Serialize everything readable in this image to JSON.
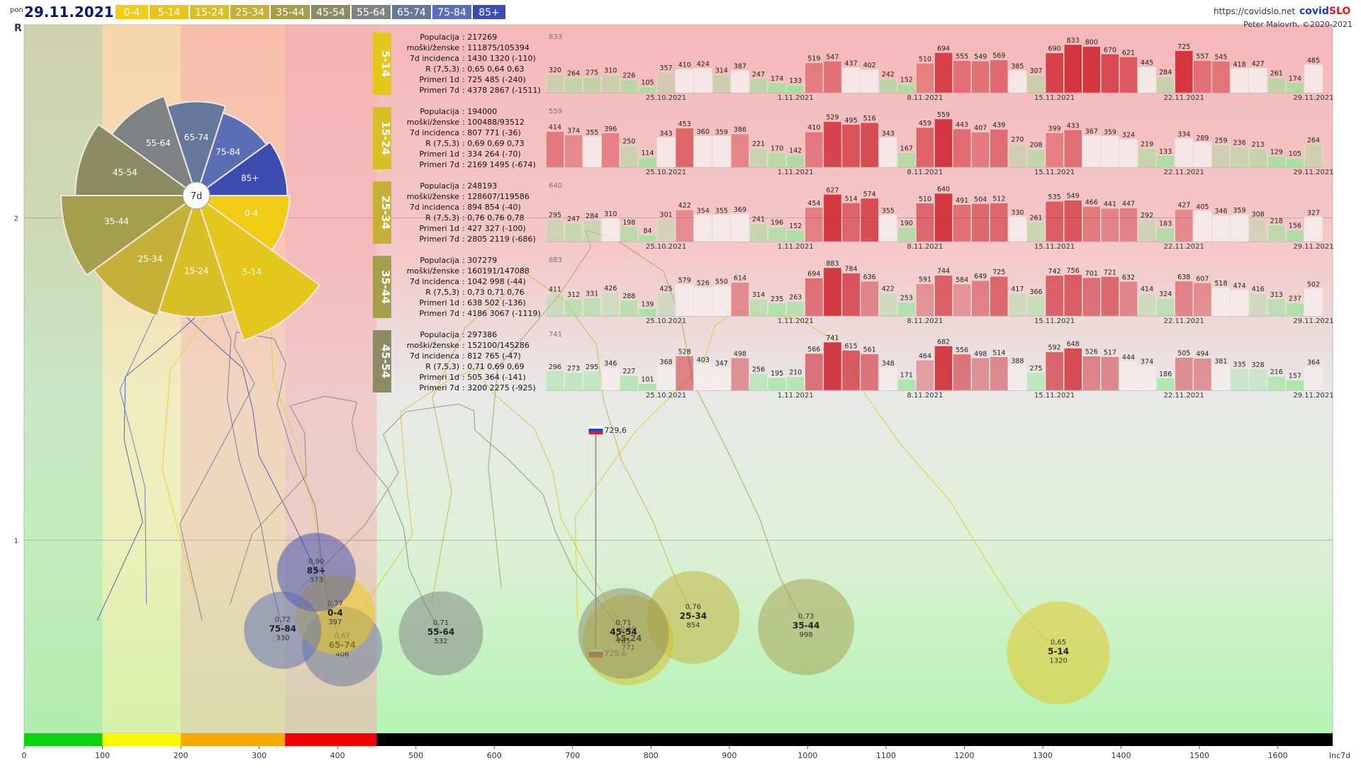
{
  "header": {
    "day": "pon",
    "date": "29.11.2021",
    "url": "https://covidslo.net",
    "brand_a": "covid",
    "brand_b": "SLO",
    "author": "Peter Malovrh, ©2020-2021",
    "age_groups": [
      {
        "label": "0-4",
        "color": "#f0cc14"
      },
      {
        "label": "5-14",
        "color": "#e4c61c"
      },
      {
        "label": "15-24",
        "color": "#d8bf28"
      },
      {
        "label": "25-34",
        "color": "#c5b138"
      },
      {
        "label": "35-44",
        "color": "#a59f4c"
      },
      {
        "label": "45-54",
        "color": "#8c8c64"
      },
      {
        "label": "55-64",
        "color": "#7e8282"
      },
      {
        "label": "65-74",
        "color": "#66779c"
      },
      {
        "label": "75-84",
        "color": "#5a6eb4"
      },
      {
        "label": "85+",
        "color": "#3c4cb0"
      }
    ]
  },
  "chart_data": [
    {
      "type": "scatter",
      "xlabel": "Inc7d",
      "ylabel": "R",
      "xlim": [
        0,
        1670
      ],
      "ylim": [
        0.4,
        2.6
      ],
      "x_ticks": [
        0,
        100,
        200,
        300,
        400,
        500,
        600,
        700,
        800,
        900,
        1000,
        1100,
        1200,
        1300,
        1400,
        1500,
        1600
      ],
      "y_ticks": [
        1,
        2
      ],
      "threshold_band": [
        {
          "from": 0,
          "to": 100,
          "color": "#0ed20e"
        },
        {
          "from": 100,
          "to": 200,
          "color": "#f8f800"
        },
        {
          "from": 200,
          "to": 333,
          "color": "#f8a800"
        },
        {
          "from": 333,
          "to": 450,
          "color": "#f00000"
        },
        {
          "from": 450,
          "to": 1670,
          "color": "#000000"
        }
      ],
      "reference_line": {
        "x": 729.6,
        "label": "729,6"
      },
      "bubbles": [
        {
          "group": "85+",
          "r": "0,90",
          "inc": "373",
          "x": 373,
          "y": 0.9,
          "size": 373,
          "color": "#3c4cb0"
        },
        {
          "group": "75-84",
          "r": "0,72",
          "inc": "330",
          "x": 330,
          "y": 0.72,
          "size": 330,
          "color": "#5a6eb4"
        },
        {
          "group": "0-4",
          "r": "0,77",
          "inc": "397",
          "x": 397,
          "y": 0.77,
          "size": 397,
          "color": "#f0cc14"
        },
        {
          "group": "65-74",
          "r": "0,67",
          "inc": "406",
          "x": 406,
          "y": 0.67,
          "size": 406,
          "color": "#66779c"
        },
        {
          "group": "55-64",
          "r": "0,71",
          "inc": "532",
          "x": 532,
          "y": 0.71,
          "size": 532,
          "color": "#7e8282"
        },
        {
          "group": "45-54",
          "r": "0,71",
          "inc": "765",
          "x": 765,
          "y": 0.71,
          "size": 765,
          "color": "#8c8c64"
        },
        {
          "group": "15-24",
          "r": "0,69",
          "inc": "771",
          "x": 771,
          "y": 0.69,
          "size": 771,
          "color": "#d8bf28"
        },
        {
          "group": "25-34",
          "r": "0,76",
          "inc": "854",
          "x": 854,
          "y": 0.76,
          "size": 854,
          "color": "#c5b138"
        },
        {
          "group": "35-44",
          "r": "0,73",
          "inc": "998",
          "x": 998,
          "y": 0.73,
          "size": 998,
          "color": "#a59f4c"
        },
        {
          "group": "5-14",
          "r": "0,65",
          "inc": "1320",
          "x": 1320,
          "y": 0.65,
          "size": 1320,
          "color": "#e4c61c"
        }
      ]
    },
    {
      "type": "pie",
      "title": "7d",
      "slices": [
        {
          "label": "0-4",
          "value": 397
        },
        {
          "label": "5-14",
          "value": 1320
        },
        {
          "label": "15-24",
          "value": 771
        },
        {
          "label": "25-34",
          "value": 854
        },
        {
          "label": "35-44",
          "value": 998
        },
        {
          "label": "45-54",
          "value": 765
        },
        {
          "label": "55-64",
          "value": 532
        },
        {
          "label": "65-74",
          "value": 406
        },
        {
          "label": "75-84",
          "value": 330
        },
        {
          "label": "85+",
          "value": 373
        }
      ]
    },
    {
      "type": "bar",
      "date_labels": [
        "25.10.2021",
        "1.11.2021",
        "8.11.2021",
        "15.11.2021",
        "22.11.2021",
        "29.11.2021"
      ],
      "panels": [
        {
          "group": "5-14",
          "max": "833",
          "stats": {
            "populacija": "217269",
            "mz": "111875/105394",
            "inc": "1430 1320 (-110)",
            "r": "0,65 0,64 0,63",
            "p1d": "725 485 (-240)",
            "p7d": "4378 2867 (-1511)"
          },
          "values": [
            320,
            264,
            275,
            310,
            226,
            105,
            357,
            410,
            424,
            314,
            387,
            247,
            174,
            133,
            519,
            547,
            437,
            402,
            242,
            152,
            510,
            694,
            555,
            549,
            569,
            385,
            307,
            690,
            833,
            800,
            670,
            621,
            445,
            284,
            725,
            557,
            545,
            418,
            427,
            261,
            174,
            485
          ]
        },
        {
          "group": "15-24",
          "max": "559",
          "stats": {
            "populacija": "194000",
            "mz": "100488/93512",
            "inc": "807 771 (-36)",
            "r": "0,69 0,69 0,73",
            "p1d": "334 264 (-70)",
            "p7d": "2169 1495 (-674)"
          },
          "values": [
            414,
            374,
            355,
            396,
            250,
            114,
            343,
            453,
            360,
            359,
            386,
            221,
            170,
            142,
            410,
            529,
            495,
            516,
            343,
            167,
            459,
            559,
            443,
            407,
            439,
            270,
            208,
            399,
            433,
            367,
            359,
            324,
            219,
            133,
            334,
            289,
            259,
            236,
            213,
            129,
            105,
            264
          ]
        },
        {
          "group": "25-34",
          "max": "640",
          "stats": {
            "populacija": "248193",
            "mz": "128607/119586",
            "inc": "894 854 (-40)",
            "r": "0,76 0,76 0,78",
            "p1d": "427 327 (-100)",
            "p7d": "2805 2119 (-686)"
          },
          "values": [
            295,
            247,
            284,
            310,
            198,
            84,
            301,
            422,
            354,
            355,
            369,
            241,
            196,
            152,
            454,
            627,
            514,
            574,
            355,
            190,
            510,
            640,
            491,
            504,
            512,
            330,
            261,
            535,
            549,
            466,
            441,
            447,
            292,
            183,
            427,
            405,
            346,
            359,
            308,
            218,
            156,
            327
          ]
        },
        {
          "group": "35-44",
          "max": "883",
          "stats": {
            "populacija": "307279",
            "mz": "160191/147088",
            "inc": "1042 998 (-44)",
            "r": "0,73 0,71 0,76",
            "p1d": "638 502 (-136)",
            "p7d": "4186 3067 (-1119)"
          },
          "values": [
            411,
            312,
            331,
            426,
            288,
            139,
            425,
            579,
            526,
            550,
            614,
            314,
            235,
            263,
            694,
            883,
            784,
            636,
            422,
            253,
            591,
            744,
            584,
            649,
            725,
            417,
            366,
            742,
            756,
            701,
            721,
            632,
            414,
            324,
            638,
            607,
            518,
            474,
            416,
            313,
            237,
            502
          ]
        },
        {
          "group": "45-54",
          "max": "741",
          "stats": {
            "populacija": "297386",
            "mz": "152100/145286",
            "inc": "812 765 (-47)",
            "r": "0,71 0,69 0,69",
            "p1d": "505 364 (-141)",
            "p7d": "3200 2275 (-925)"
          },
          "values": [
            296,
            273,
            295,
            346,
            227,
            101,
            368,
            528,
            403,
            347,
            498,
            256,
            195,
            210,
            566,
            741,
            615,
            561,
            348,
            171,
            464,
            682,
            556,
            498,
            514,
            388,
            275,
            592,
            648,
            526,
            517,
            444,
            374,
            186,
            505,
            494,
            381,
            335,
            328,
            216,
            157,
            364
          ]
        }
      ]
    }
  ],
  "stat_labels": {
    "populacija": "Populacija",
    "mz": "moški/ženske",
    "inc": "7d incidenca",
    "r": "R (7,5,3)",
    "p1d": "Primeri 1d",
    "p7d": "Primeri 7d"
  }
}
